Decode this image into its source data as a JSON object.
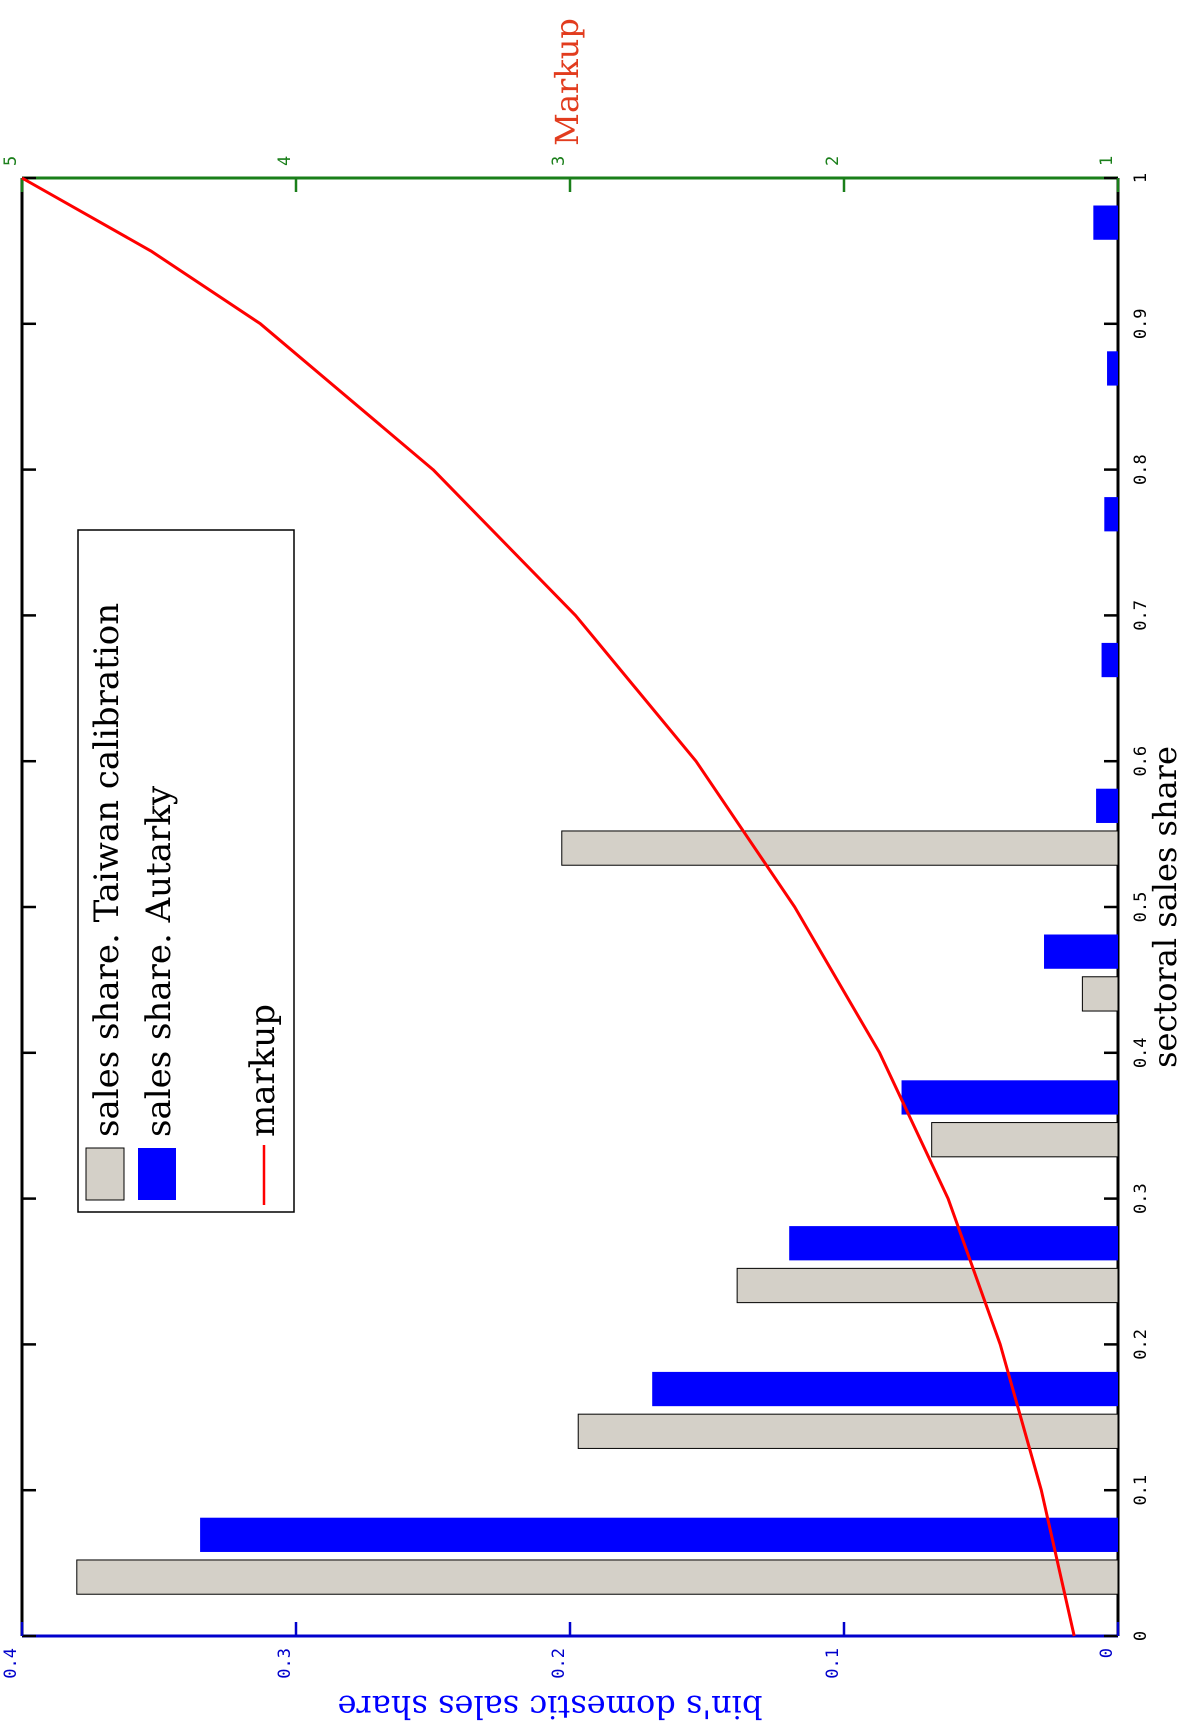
{
  "chart_data": {
    "type": "bar",
    "orientation": "rotated-90-clockwise",
    "xlabel": "sectoral sales share",
    "ylabel": "bin's domestic sales share",
    "y2label": "Markup",
    "xlim": [
      0,
      1
    ],
    "ylim": [
      0,
      0.4
    ],
    "y2lim": [
      1,
      5
    ],
    "x_ticks": [
      "0",
      "0.1",
      "0.2",
      "0.3",
      "0.4",
      "0.5",
      "0.6",
      "0.7",
      "0.8",
      "0.9",
      "1"
    ],
    "y_ticks": [
      "0",
      "0.1",
      "0.2",
      "0.3",
      "0.4"
    ],
    "y2_ticks": [
      "1",
      "2",
      "3",
      "4",
      "5"
    ],
    "bin_width": 0.1,
    "series": [
      {
        "name": "sales share.  Taiwan calibration",
        "color": "#d4d0c8",
        "bins": [
          0.05,
          0.15,
          0.25,
          0.35,
          0.45,
          0.55
        ],
        "values": [
          0.38,
          0.197,
          0.139,
          0.068,
          0.013,
          0.203
        ]
      },
      {
        "name": "sales share.  Autarky",
        "color": "#0000ff",
        "bins": [
          0.05,
          0.15,
          0.25,
          0.35,
          0.45,
          0.55,
          0.65,
          0.75,
          0.85,
          0.95
        ],
        "values": [
          0.335,
          0.17,
          0.12,
          0.079,
          0.027,
          0.008,
          0.006,
          0.005,
          0.004,
          0.009
        ]
      }
    ],
    "line": {
      "name": "markup",
      "color": "#ff0000",
      "x": [
        0.0,
        0.1,
        0.2,
        0.3,
        0.4,
        0.5,
        0.6,
        0.7,
        0.8,
        0.9,
        0.95,
        1.0
      ],
      "y": [
        1.16,
        1.28,
        1.43,
        1.62,
        1.87,
        2.18,
        2.54,
        2.98,
        3.5,
        4.13,
        4.53,
        5.0
      ]
    },
    "legend_placement": "top-left",
    "colors": {
      "axis": "#000000",
      "left_axis": "#0000cc",
      "right_axis": "#1a7f1a",
      "markup_title": "#e23c1e"
    }
  }
}
